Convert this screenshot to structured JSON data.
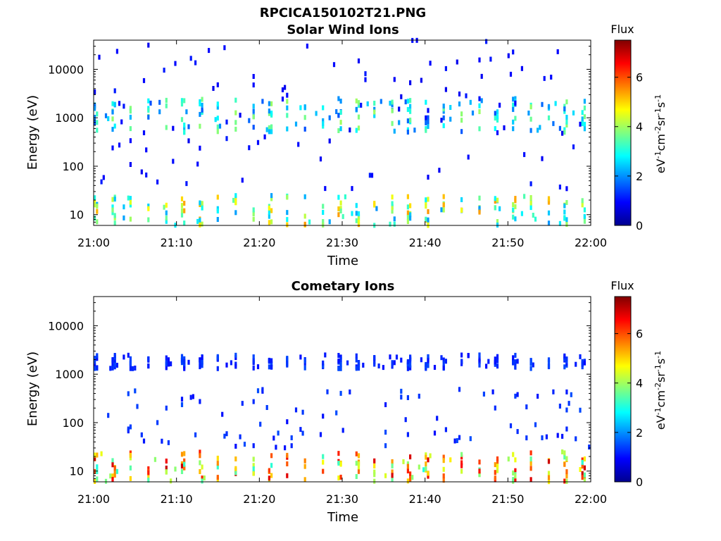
{
  "figure_title": "RPCICA150102T21.PNG",
  "chart_data": [
    {
      "type": "heatmap",
      "title": "Solar Wind Ions",
      "xlabel": "Time",
      "ylabel": "Energy (eV)",
      "x_ticks": [
        "21:00",
        "21:10",
        "21:20",
        "21:30",
        "21:40",
        "21:50",
        "22:00"
      ],
      "xlim": [
        "21:00",
        "22:00"
      ],
      "y_ticks": [
        "10",
        "100",
        "1000",
        "10000"
      ],
      "y_scale": "log",
      "ylim": [
        6,
        40000
      ],
      "colorbar": {
        "title": "Flux",
        "label": "eV-1cm-2sr-1s-1",
        "ticks": [
          "0",
          "2",
          "4",
          "6"
        ],
        "range": [
          0,
          7.5
        ]
      },
      "features": [
        {
          "band": "low-energy",
          "energy_range_eV": [
            6,
            25
          ],
          "flux_range": [
            2,
            5.5
          ],
          "occurrence": "periodic bursts every ~2 minutes"
        },
        {
          "band": "1-2 keV solar wind",
          "energy_range_eV": [
            500,
            2500
          ],
          "flux_range": [
            1.5,
            4
          ],
          "occurrence": "periodic bursts every ~2 minutes"
        },
        {
          "band": "scattered",
          "energy_range_eV": [
            30,
            40000
          ],
          "flux_range": [
            0.8,
            1.5
          ],
          "occurrence": "sparse"
        }
      ]
    },
    {
      "type": "heatmap",
      "title": "Cometary Ions",
      "xlabel": "Time",
      "ylabel": "Energy (eV)",
      "x_ticks": [
        "21:00",
        "21:10",
        "21:20",
        "21:30",
        "21:40",
        "21:50",
        "22:00"
      ],
      "xlim": [
        "21:00",
        "22:00"
      ],
      "y_ticks": [
        "10",
        "100",
        "1000",
        "10000"
      ],
      "y_scale": "log",
      "ylim": [
        6,
        40000
      ],
      "colorbar": {
        "title": "Flux",
        "label": "eV-1cm-2sr-1s-1",
        "ticks": [
          "0",
          "2",
          "4",
          "6"
        ],
        "range": [
          0,
          7.5
        ]
      },
      "features": [
        {
          "band": "low-energy",
          "energy_range_eV": [
            6,
            25
          ],
          "flux_range": [
            3,
            7
          ],
          "occurrence": "periodic bursts every ~2 minutes"
        },
        {
          "band": "1-2 keV",
          "energy_range_eV": [
            1300,
            2500
          ],
          "flux_range": [
            1,
            1.5
          ],
          "occurrence": "periodic sparse pixels"
        },
        {
          "band": "scattered",
          "energy_range_eV": [
            30,
            500
          ],
          "flux_range": [
            1,
            2
          ],
          "occurrence": "sparse"
        }
      ]
    }
  ]
}
